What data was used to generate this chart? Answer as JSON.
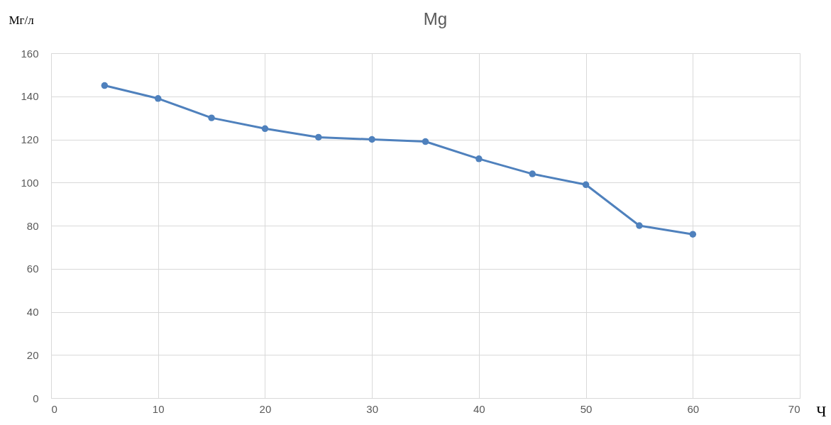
{
  "chart_data": {
    "type": "line",
    "title": "Mg",
    "ylabel": "Мг/л",
    "xlabel": "Ч",
    "x": [
      5,
      10,
      15,
      20,
      25,
      30,
      35,
      40,
      45,
      50,
      55,
      60
    ],
    "series": [
      {
        "color": "#4f81bd",
        "values": [
          145,
          139,
          130,
          125,
          121,
          120,
          119,
          111,
          104,
          99,
          80,
          76
        ]
      }
    ],
    "xlim": [
      0,
      70
    ],
    "xticks": [
      0,
      10,
      20,
      30,
      40,
      50,
      60,
      70
    ],
    "ylim": [
      0,
      160
    ],
    "yticks": [
      0,
      20,
      40,
      60,
      80,
      100,
      120,
      140,
      160
    ],
    "grid": true,
    "marker": "circle",
    "line_style": "solid"
  }
}
